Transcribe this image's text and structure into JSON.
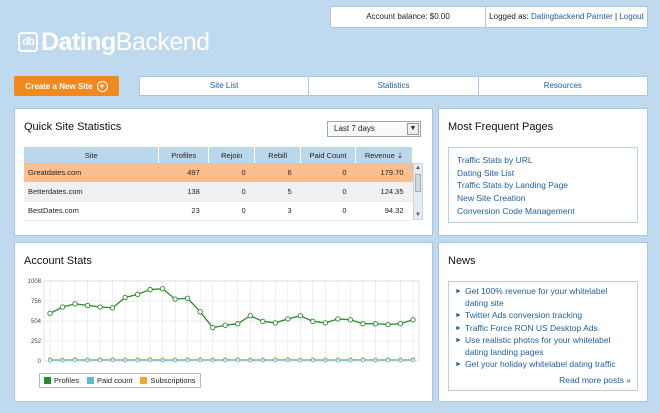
{
  "header": {
    "account_balance": "Account balance: $0.00",
    "logged_as_prefix": "Logged as: ",
    "user_name": "Datingbackend Parnter",
    "separator": " | ",
    "logout": "Logout"
  },
  "logo": {
    "mark": "db",
    "part1": "Dating",
    "part2": "Backend"
  },
  "nav": {
    "create_label": "Create a New Site",
    "tabs": [
      "Site List",
      "Statistics",
      "Resources"
    ]
  },
  "quick_stats": {
    "title": "Quick Site Statistics",
    "period": "Last 7 days",
    "columns": [
      "Site",
      "Profiles",
      "Rejoin",
      "Rebill",
      "Paid Count",
      "Revenue ⇣"
    ],
    "rows": [
      [
        "Greatdates.com",
        "497",
        "0",
        "6",
        "0",
        "179.70"
      ],
      [
        "Betterdates.com",
        "138",
        "0",
        "5",
        "0",
        "124.35"
      ],
      [
        "BestDates.com",
        "23",
        "0",
        "3",
        "0",
        "94.32"
      ]
    ]
  },
  "frequent_pages": {
    "title": "Most Frequent Pages",
    "links": [
      "Traffic Stats by URL",
      "Dating Site List",
      "Traffic Stats by Landing Page",
      "New Site Creation",
      "Conversion Code Management"
    ]
  },
  "account_stats": {
    "title": "Account Stats"
  },
  "news": {
    "title": "News",
    "items": [
      "Get 100% revenue for your whitelabel dating site",
      "Twitter Ads conversion tracking",
      "Traffic Force RON US Desktop Ads",
      "Use realistic photos for your whitelabel dating landing pages",
      "Get your holiday whitelabel dating traffic"
    ],
    "read_more": "Read more posts »"
  },
  "chart_data": {
    "type": "line",
    "y_ticks": [
      "0",
      "252",
      "504",
      "756",
      "1008"
    ],
    "ylim": [
      0,
      1008
    ],
    "grid": true,
    "legend_placement": "bottom-left",
    "series": [
      {
        "name": "Profiles",
        "color": "#2b8a2b",
        "values": [
          600,
          680,
          720,
          700,
          680,
          670,
          800,
          840,
          900,
          910,
          780,
          790,
          620,
          420,
          450,
          470,
          570,
          500,
          480,
          530,
          570,
          500,
          480,
          530,
          520,
          470,
          470,
          460,
          470,
          520
        ]
      },
      {
        "name": "Paid count",
        "color": "#5bb8d6",
        "values": [
          10,
          8,
          12,
          9,
          10,
          11,
          9,
          10,
          12,
          8,
          9,
          10,
          11,
          9,
          10,
          12,
          8,
          9,
          10,
          11,
          9,
          10,
          8,
          9,
          10,
          11,
          9,
          10,
          9,
          10
        ]
      },
      {
        "name": "Subscriptions",
        "color": "#f0a830",
        "values": [
          20,
          18,
          22,
          19,
          20,
          21,
          19,
          20,
          22,
          18,
          19,
          20,
          21,
          19,
          20,
          22,
          18,
          19,
          20,
          21,
          19,
          20,
          18,
          19,
          20,
          21,
          19,
          20,
          19,
          20
        ]
      }
    ]
  }
}
